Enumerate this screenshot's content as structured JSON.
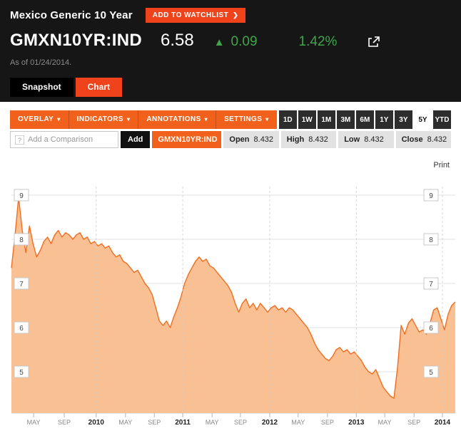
{
  "page": {
    "title": "Mexico Generic 10 Year",
    "watchlist_label": "ADD TO WATCHLIST"
  },
  "quote": {
    "ticker": "GMXN10YR:IND",
    "price": "6.58",
    "change": "0.09",
    "change_pct": "1.42%",
    "as_of": "As of 01/24/2014."
  },
  "tabs": [
    {
      "label": "Snapshot",
      "active": false
    },
    {
      "label": "Chart",
      "active": true
    }
  ],
  "toolbar": {
    "menus": [
      "OVERLAY",
      "INDICATORS",
      "ANNOTATIONS",
      "SETTINGS"
    ],
    "ranges": [
      "1D",
      "1W",
      "1M",
      "3M",
      "6M",
      "1Y",
      "3Y",
      "5Y",
      "YTD"
    ],
    "active_range": "5Y"
  },
  "comparison": {
    "placeholder": "Add a Comparison",
    "add_label": "Add",
    "series_label": "GMXN10YR:IND",
    "ohlc": [
      {
        "label": "Open",
        "value": "8.432"
      },
      {
        "label": "High",
        "value": "8.432"
      },
      {
        "label": "Low",
        "value": "8.432"
      },
      {
        "label": "Close",
        "value": "8.432"
      }
    ]
  },
  "chart": {
    "print_label": "Print"
  },
  "icons": {
    "up_arrow": "▲",
    "caret_down": "▾",
    "chevron_right": "❯",
    "help": "?"
  },
  "colors": {
    "header_bg": "#161616",
    "accent_red": "#f0431c",
    "toolbar_orange": "#f2611b",
    "positive_green": "#3fa64a",
    "chart_line": "#f26d1f",
    "chart_fill": "#f9c193"
  },
  "chart_data": {
    "type": "area",
    "series_name": "GMXN10YR:IND",
    "x_range": "Jan 2009 - Jan 2014",
    "ylim": [
      4.0,
      9.5
    ],
    "y_ticks": [
      5,
      6,
      7,
      8,
      9
    ],
    "grid": true,
    "line_color": "#f26d1f",
    "fill_color": "#f9c193",
    "x_labels": [
      {
        "label": "MAY",
        "pos": 0.05,
        "year": false
      },
      {
        "label": "SEP",
        "pos": 0.119,
        "year": false
      },
      {
        "label": "2010",
        "pos": 0.191,
        "year": true
      },
      {
        "label": "MAY",
        "pos": 0.257,
        "year": false
      },
      {
        "label": "SEP",
        "pos": 0.322,
        "year": false
      },
      {
        "label": "2011",
        "pos": 0.386,
        "year": true
      },
      {
        "label": "MAY",
        "pos": 0.452,
        "year": false
      },
      {
        "label": "SEP",
        "pos": 0.516,
        "year": false
      },
      {
        "label": "2012",
        "pos": 0.582,
        "year": true
      },
      {
        "label": "MAY",
        "pos": 0.646,
        "year": false
      },
      {
        "label": "SEP",
        "pos": 0.712,
        "year": false
      },
      {
        "label": "2013",
        "pos": 0.777,
        "year": true
      },
      {
        "label": "MAY",
        "pos": 0.841,
        "year": false
      },
      {
        "label": "SEP",
        "pos": 0.907,
        "year": false
      },
      {
        "label": "2014",
        "pos": 0.971,
        "year": true
      }
    ],
    "values": [
      7.35,
      8.1,
      8.95,
      8.2,
      7.7,
      8.3,
      7.9,
      7.6,
      7.75,
      7.95,
      8.05,
      7.9,
      8.1,
      8.2,
      8.05,
      8.15,
      8.1,
      8.0,
      8.1,
      8.15,
      8.0,
      8.05,
      7.9,
      7.95,
      7.85,
      7.9,
      7.8,
      7.85,
      7.7,
      7.6,
      7.65,
      7.5,
      7.45,
      7.35,
      7.25,
      7.3,
      7.15,
      7.0,
      6.9,
      6.75,
      6.45,
      6.15,
      6.05,
      6.15,
      6.0,
      6.25,
      6.45,
      6.7,
      7.0,
      7.2,
      7.35,
      7.5,
      7.6,
      7.5,
      7.55,
      7.4,
      7.35,
      7.25,
      7.15,
      7.05,
      6.95,
      6.8,
      6.55,
      6.35,
      6.55,
      6.65,
      6.45,
      6.55,
      6.4,
      6.55,
      6.45,
      6.35,
      6.45,
      6.5,
      6.4,
      6.45,
      6.35,
      6.45,
      6.4,
      6.3,
      6.2,
      6.1,
      6.0,
      5.85,
      5.65,
      5.5,
      5.4,
      5.3,
      5.25,
      5.35,
      5.5,
      5.55,
      5.45,
      5.5,
      5.4,
      5.45,
      5.35,
      5.25,
      5.1,
      5.0,
      4.95,
      5.05,
      4.85,
      4.65,
      4.55,
      4.45,
      4.4,
      5.1,
      6.05,
      5.85,
      6.1,
      6.2,
      6.05,
      5.9,
      5.95,
      5.85,
      6.1,
      6.4,
      6.45,
      6.2,
      5.95,
      6.3,
      6.5,
      6.58
    ]
  }
}
